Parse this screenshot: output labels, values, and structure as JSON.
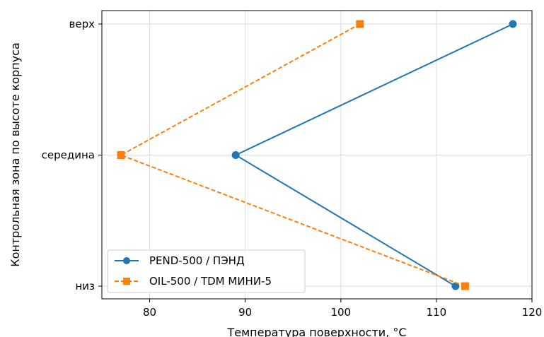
{
  "chart_data": {
    "type": "line",
    "orientation": "horizontal-value-axis",
    "xlabel": "Температура поверхности, °C",
    "ylabel": "Контрольная зона по высоте корпуса",
    "categories": [
      "низ",
      "середина",
      "верх"
    ],
    "xlim": [
      75,
      120
    ],
    "xticks": [
      "80",
      "90",
      "100",
      "110",
      "120"
    ],
    "grid": true,
    "legend_position": "lower-left",
    "series": [
      {
        "name": "PEND-500 / ПЭНД",
        "marker": "circle",
        "linestyle": "solid",
        "color": "#1f77b4",
        "values": [
          112,
          89,
          118
        ]
      },
      {
        "name": "OIL-500 / TDM МИНИ-5",
        "marker": "square",
        "linestyle": "dashed",
        "color": "#ff7f0e",
        "values": [
          113,
          77,
          102
        ]
      }
    ]
  }
}
